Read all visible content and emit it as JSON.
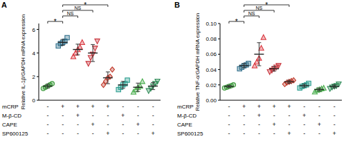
{
  "chart_data": [
    {
      "type": "scatter",
      "panel": "A",
      "ylabel": "Relative IL-1β/GAPDH mRNA expression",
      "ylim": [
        0,
        6.5
      ],
      "yticks": [
        0,
        2,
        4,
        6
      ],
      "tick_labels": "y",
      "series": [
        {
          "color": "#3a9a3a",
          "marker": "circle",
          "values": [
            1.0,
            1.1,
            1.2,
            1.3,
            1.4
          ],
          "mean": 1.2,
          "sd": 0.16
        },
        {
          "color": "#2f6e8a",
          "marker": "square",
          "values": [
            4.6,
            4.8,
            4.9,
            5.0,
            5.3
          ],
          "mean": 4.9,
          "sd": 0.25
        },
        {
          "color": "#d9363e",
          "marker": "triangle",
          "values": [
            3.7,
            4.0,
            4.3,
            4.5,
            4.9
          ],
          "mean": 4.3,
          "sd": 0.45
        },
        {
          "color": "#c8323a",
          "marker": "triangle-down",
          "values": [
            3.1,
            3.6,
            3.9,
            4.4,
            5.0
          ],
          "mean": 4.0,
          "sd": 0.72
        },
        {
          "color": "#c0392b",
          "marker": "diamond",
          "values": [
            1.3,
            1.6,
            1.9,
            2.0,
            2.6
          ],
          "mean": 1.9,
          "sd": 0.5
        },
        {
          "color": "#2a9d8f",
          "marker": "square",
          "values": [
            0.9,
            1.1,
            1.3,
            1.4,
            1.7
          ],
          "mean": 1.3,
          "sd": 0.3
        },
        {
          "color": "#4caf50",
          "marker": "triangle",
          "values": [
            0.7,
            0.9,
            1.1,
            1.2,
            1.6
          ],
          "mean": 1.1,
          "sd": 0.35
        },
        {
          "color": "#2e8b57",
          "marker": "triangle-down",
          "values": [
            0.8,
            1.0,
            1.2,
            1.4,
            1.6
          ],
          "mean": 1.2,
          "sd": 0.3
        }
      ],
      "annotations": [
        {
          "text": "*",
          "from": 0,
          "to": 1
        },
        {
          "text": "NS",
          "from": 1,
          "to": 2
        },
        {
          "text": "NS",
          "from": 1,
          "to": 3
        },
        {
          "text": "*",
          "from": 1,
          "to": 4
        }
      ],
      "treatment_rows": [
        {
          "label": "mCRP",
          "signs": [
            "-",
            "+",
            "+",
            "+",
            "+",
            "-",
            "-",
            "-"
          ]
        },
        {
          "label": "M-β-CD",
          "signs": [
            "-",
            "-",
            "+",
            "-",
            "-",
            "+",
            "-",
            "-"
          ]
        },
        {
          "label": "CAPE",
          "signs": [
            "-",
            "-",
            "-",
            "+",
            "-",
            "-",
            "+",
            "-"
          ]
        },
        {
          "label": "SP600125",
          "signs": [
            "-",
            "-",
            "-",
            "-",
            "+",
            "-",
            "-",
            "+"
          ]
        }
      ]
    },
    {
      "type": "scatter",
      "panel": "B",
      "ylabel": "Relative TNF-α/GAPDH mRNA expression",
      "ylim": [
        0,
        0.1
      ],
      "yticks": [
        {
          "value": 0,
          "label": "0.00"
        },
        {
          "value": 0.02,
          "label": "0.02"
        },
        {
          "value": 0.04,
          "label": "0.04"
        },
        {
          "value": 0.06,
          "label": "0.06"
        },
        {
          "value": 0.08,
          "label": "0.08"
        },
        {
          "value": 0.1,
          "label": "0.10"
        }
      ],
      "tick_labels": "y",
      "series": [
        {
          "color": "#3a9a3a",
          "marker": "circle",
          "values": [
            0.016,
            0.017,
            0.018,
            0.019,
            0.02
          ],
          "mean": 0.018,
          "sd": 0.0016
        },
        {
          "color": "#2f6e8a",
          "marker": "square",
          "values": [
            0.041,
            0.043,
            0.045,
            0.046,
            0.048
          ],
          "mean": 0.045,
          "sd": 0.0027
        },
        {
          "color": "#d9363e",
          "marker": "triangle",
          "values": [
            0.045,
            0.05,
            0.055,
            0.068,
            0.082
          ],
          "mean": 0.06,
          "sd": 0.015
        },
        {
          "color": "#c8323a",
          "marker": "triangle-down",
          "values": [
            0.037,
            0.039,
            0.041,
            0.043,
            0.045
          ],
          "mean": 0.041,
          "sd": 0.003
        },
        {
          "color": "#c0392b",
          "marker": "diamond",
          "values": [
            0.021,
            0.023,
            0.024,
            0.025,
            0.026
          ],
          "mean": 0.024,
          "sd": 0.002
        },
        {
          "color": "#2a9d8f",
          "marker": "square",
          "values": [
            0.016,
            0.018,
            0.019,
            0.02,
            0.022
          ],
          "mean": 0.019,
          "sd": 0.002
        },
        {
          "color": "#4caf50",
          "marker": "triangle",
          "values": [
            0.011,
            0.013,
            0.014,
            0.015,
            0.016
          ],
          "mean": 0.014,
          "sd": 0.002
        },
        {
          "color": "#2e8b57",
          "marker": "triangle-down",
          "values": [
            0.015,
            0.017,
            0.018,
            0.019,
            0.021
          ],
          "mean": 0.018,
          "sd": 0.002
        }
      ],
      "annotations": [
        {
          "text": "*",
          "from": 0,
          "to": 1
        },
        {
          "text": "NS",
          "from": 1,
          "to": 2
        },
        {
          "text": "NS",
          "from": 1,
          "to": 3
        },
        {
          "text": "*",
          "from": 1,
          "to": 4
        }
      ],
      "treatment_rows": [
        {
          "label": "mCRP",
          "signs": [
            "-",
            "+",
            "+",
            "+",
            "+",
            "-",
            "-",
            "-"
          ]
        },
        {
          "label": "M-β-CD",
          "signs": [
            "-",
            "-",
            "+",
            "-",
            "-",
            "+",
            "-",
            "-"
          ]
        },
        {
          "label": "CAPE",
          "signs": [
            "-",
            "-",
            "-",
            "+",
            "-",
            "-",
            "+",
            "-"
          ]
        },
        {
          "label": "SP600125",
          "signs": [
            "-",
            "-",
            "-",
            "-",
            "+",
            "-",
            "-",
            "+"
          ]
        }
      ]
    }
  ]
}
